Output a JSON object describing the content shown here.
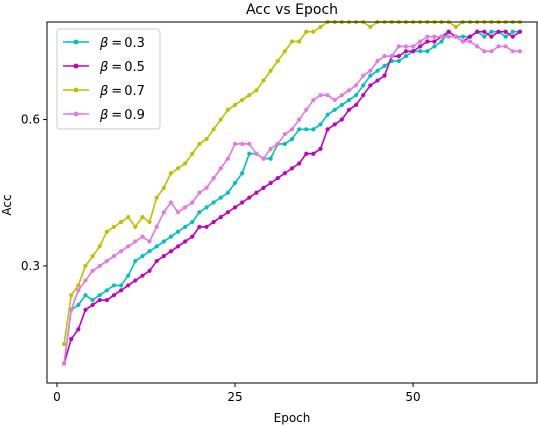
{
  "chart_data": {
    "type": "line",
    "title": "Acc vs Epoch",
    "xlabel": "Epoch",
    "ylabel": "Acc",
    "xlim": [
      -1.4,
      67.4
    ],
    "ylim": [
      0.06,
      0.8
    ],
    "xticks": [
      0,
      25,
      50
    ],
    "yticks": [
      0.3,
      0.6
    ],
    "ytick_labels": [
      "0.3",
      "0.6"
    ],
    "grid": false,
    "legend_position": "top-left",
    "x": [
      1,
      2,
      3,
      4,
      5,
      6,
      7,
      8,
      9,
      10,
      11,
      12,
      13,
      14,
      15,
      16,
      17,
      18,
      19,
      20,
      21,
      22,
      23,
      24,
      25,
      26,
      27,
      28,
      29,
      30,
      31,
      32,
      33,
      34,
      35,
      36,
      37,
      38,
      39,
      40,
      41,
      42,
      43,
      44,
      45,
      46,
      47,
      48,
      49,
      50,
      51,
      52,
      53,
      54,
      55,
      56,
      57,
      58,
      59,
      60,
      61,
      62,
      63,
      64,
      65
    ],
    "series": [
      {
        "name": "β = 0.3",
        "legend_prefix": "β",
        "legend_value": "0.3",
        "color": "#00bfbf",
        "values": [
          0.1,
          0.21,
          0.22,
          0.24,
          0.23,
          0.24,
          0.25,
          0.26,
          0.26,
          0.28,
          0.31,
          0.32,
          0.33,
          0.34,
          0.35,
          0.36,
          0.37,
          0.38,
          0.39,
          0.41,
          0.42,
          0.43,
          0.44,
          0.45,
          0.47,
          0.49,
          0.53,
          0.53,
          0.52,
          0.52,
          0.55,
          0.55,
          0.56,
          0.58,
          0.58,
          0.58,
          0.59,
          0.61,
          0.62,
          0.63,
          0.64,
          0.65,
          0.67,
          0.69,
          0.7,
          0.71,
          0.72,
          0.72,
          0.73,
          0.74,
          0.74,
          0.74,
          0.75,
          0.76,
          0.78,
          0.77,
          0.77,
          0.77,
          0.78,
          0.77,
          0.78,
          0.78,
          0.77,
          0.78,
          0.78
        ]
      },
      {
        "name": "β = 0.5",
        "legend_prefix": "β",
        "legend_value": "0.5",
        "color": "#bf00bf",
        "values": [
          0.1,
          0.15,
          0.17,
          0.21,
          0.22,
          0.23,
          0.23,
          0.24,
          0.25,
          0.26,
          0.27,
          0.28,
          0.29,
          0.31,
          0.32,
          0.33,
          0.34,
          0.35,
          0.36,
          0.38,
          0.38,
          0.39,
          0.4,
          0.41,
          0.42,
          0.43,
          0.44,
          0.45,
          0.46,
          0.47,
          0.48,
          0.49,
          0.5,
          0.51,
          0.53,
          0.53,
          0.54,
          0.58,
          0.59,
          0.6,
          0.62,
          0.63,
          0.65,
          0.67,
          0.68,
          0.69,
          0.73,
          0.73,
          0.74,
          0.74,
          0.75,
          0.76,
          0.76,
          0.77,
          0.78,
          0.77,
          0.76,
          0.77,
          0.78,
          0.78,
          0.77,
          0.78,
          0.78,
          0.77,
          0.78
        ]
      },
      {
        "name": "β = 0.7",
        "legend_prefix": "β",
        "legend_value": "0.7",
        "color": "#bfbf00",
        "values": [
          0.14,
          0.24,
          0.26,
          0.3,
          0.32,
          0.34,
          0.37,
          0.38,
          0.39,
          0.4,
          0.38,
          0.4,
          0.39,
          0.44,
          0.46,
          0.49,
          0.5,
          0.51,
          0.53,
          0.55,
          0.56,
          0.58,
          0.6,
          0.62,
          0.63,
          0.64,
          0.65,
          0.66,
          0.68,
          0.7,
          0.72,
          0.74,
          0.76,
          0.76,
          0.78,
          0.78,
          0.79,
          0.8,
          0.8,
          0.8,
          0.8,
          0.8,
          0.8,
          0.79,
          0.8,
          0.8,
          0.8,
          0.8,
          0.8,
          0.8,
          0.8,
          0.8,
          0.8,
          0.8,
          0.8,
          0.79,
          0.8,
          0.8,
          0.8,
          0.8,
          0.8,
          0.8,
          0.8,
          0.8,
          0.8
        ]
      },
      {
        "name": "β = 0.9",
        "legend_prefix": "β",
        "legend_value": "0.9",
        "color": "#e377e3",
        "values": [
          0.1,
          0.21,
          0.25,
          0.27,
          0.29,
          0.3,
          0.31,
          0.32,
          0.33,
          0.34,
          0.35,
          0.36,
          0.35,
          0.38,
          0.41,
          0.43,
          0.41,
          0.42,
          0.43,
          0.45,
          0.46,
          0.48,
          0.5,
          0.52,
          0.55,
          0.55,
          0.55,
          0.53,
          0.52,
          0.54,
          0.55,
          0.57,
          0.58,
          0.6,
          0.62,
          0.64,
          0.65,
          0.65,
          0.64,
          0.65,
          0.66,
          0.67,
          0.69,
          0.7,
          0.72,
          0.73,
          0.73,
          0.75,
          0.75,
          0.75,
          0.76,
          0.77,
          0.77,
          0.77,
          0.77,
          0.77,
          0.76,
          0.76,
          0.75,
          0.74,
          0.74,
          0.75,
          0.75,
          0.74,
          0.74
        ]
      }
    ]
  }
}
